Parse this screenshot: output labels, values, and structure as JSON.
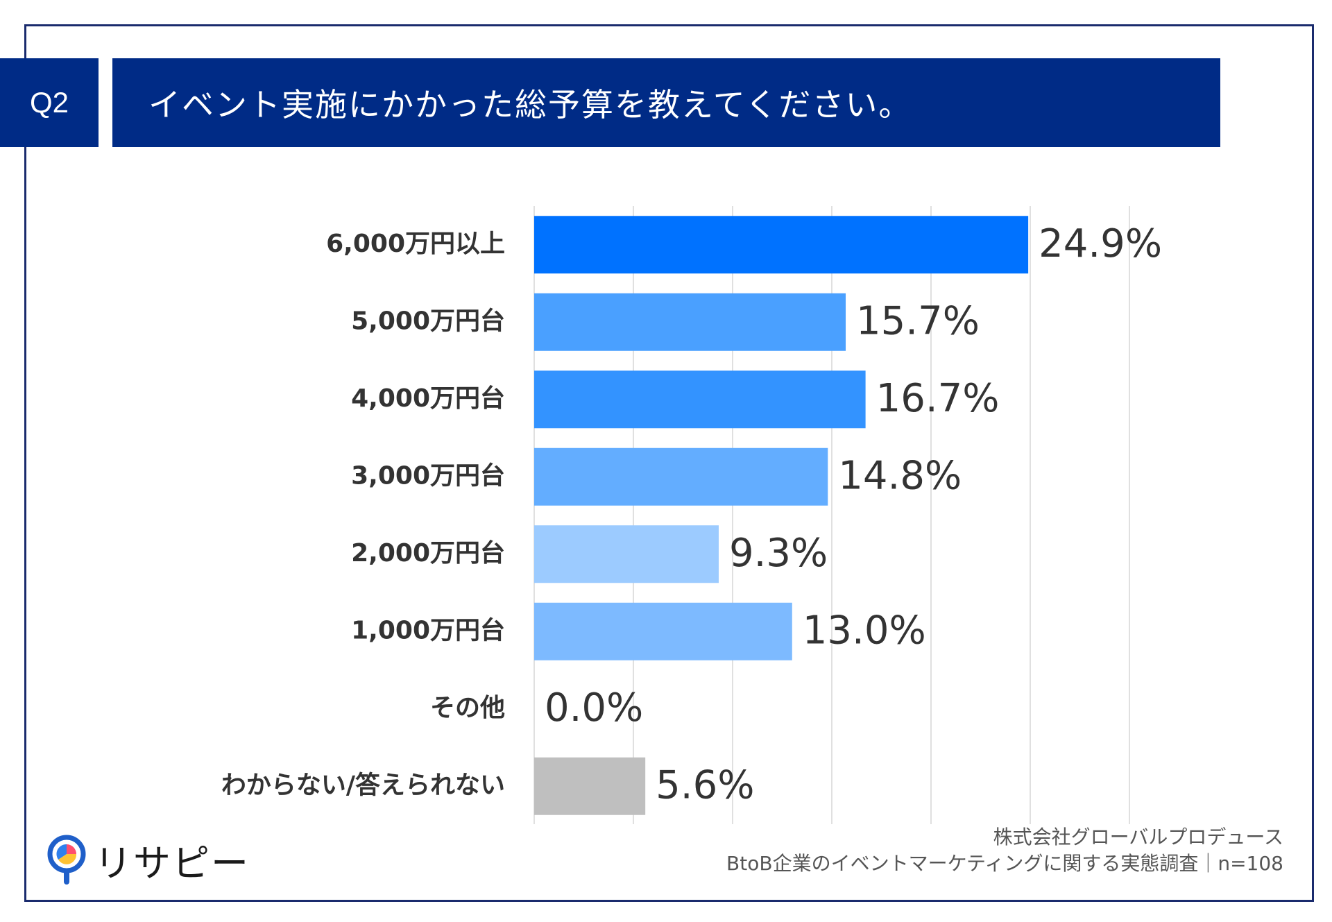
{
  "header": {
    "q_label": "Q2",
    "title": "イベント実施にかかった総予算を教えてください。"
  },
  "chart_data": {
    "type": "bar",
    "orientation": "horizontal",
    "categories": [
      "6,000万円以上",
      "5,000万円台",
      "4,000万円台",
      "3,000万円台",
      "2,000万円台",
      "1,000万円台",
      "その他",
      "わからない/答えられない"
    ],
    "values": [
      24.9,
      15.7,
      16.7,
      14.8,
      9.3,
      13.0,
      0.0,
      5.6
    ],
    "value_labels": [
      "24.9%",
      "15.7%",
      "16.7%",
      "14.8%",
      "9.3%",
      "13.0%",
      "0.0%",
      "5.6%"
    ],
    "colors": [
      "#0072ff",
      "#4aa0ff",
      "#3393ff",
      "#63adff",
      "#9ccbff",
      "#7dbaff",
      "#bfbfbf",
      "#bfbfbf"
    ],
    "xlim": [
      0,
      30
    ],
    "grid": true,
    "title": "イベント実施にかかった総予算を教えてください。"
  },
  "footer": {
    "source_line1": "株式会社グローバルプロデュース",
    "source_line2": "BtoB企業のイベントマーケティングに関する実態調査｜n=108",
    "logo_text": "リサピー"
  }
}
